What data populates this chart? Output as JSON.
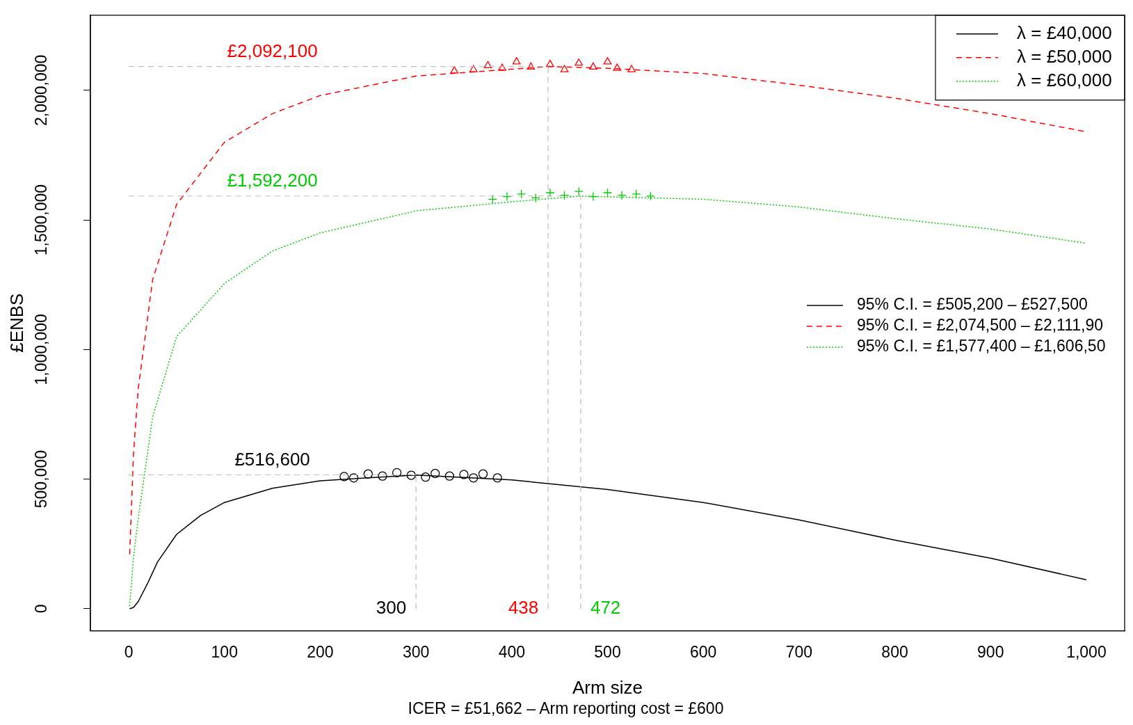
{
  "chart_data": {
    "type": "line",
    "xlabel": "Arm size",
    "ylabel": "£ENBS",
    "subtitle": "ICER = £51,662 – Arm reporting cost = £600",
    "xlim": [
      -40,
      1040
    ],
    "ylim": [
      -85000,
      2290000
    ],
    "xticks": [
      0,
      100,
      200,
      300,
      400,
      500,
      600,
      700,
      800,
      900,
      {
        "value": 1000,
        "label": "1,000"
      }
    ],
    "yticks": [
      0,
      {
        "value": 500000,
        "label": "500,000"
      },
      {
        "value": 1000000,
        "label": "1,000,000"
      },
      {
        "value": 1500000,
        "label": "1,500,000"
      },
      {
        "value": 2000000,
        "label": "2,000,000"
      }
    ],
    "grid": false,
    "legend": "top right",
    "series": [
      {
        "name": "λ = £40,000",
        "type": "line",
        "line_style": "solid",
        "color": "#000000",
        "x": [
          1,
          5,
          10,
          20,
          30,
          50,
          75,
          100,
          150,
          200,
          300,
          400,
          500,
          600,
          700,
          800,
          900,
          1000
        ],
        "values": [
          0,
          5000,
          28000,
          100000,
          180000,
          287000,
          360000,
          410000,
          465000,
          494000,
          516000,
          497000,
          460000,
          410000,
          343000,
          265000,
          195000,
          112000
        ]
      },
      {
        "name": "λ = £50,000",
        "type": "line",
        "line_style": "dashed",
        "color": "#ff0000",
        "x": [
          1,
          5,
          10,
          25,
          50,
          100,
          150,
          200,
          300,
          438,
          500,
          600,
          700,
          800,
          900,
          1000
        ],
        "values": [
          210000,
          600000,
          850000,
          1270000,
          1560000,
          1800000,
          1910000,
          1980000,
          2055000,
          2092000,
          2085000,
          2065000,
          2020000,
          1970000,
          1910000,
          1840000
        ]
      },
      {
        "name": "λ = £60,000",
        "type": "line",
        "line_style": "dotted",
        "color": "#00cc00",
        "x": [
          1,
          5,
          10,
          25,
          50,
          100,
          150,
          200,
          300,
          400,
          472,
          600,
          700,
          800,
          900,
          1000
        ],
        "values": [
          10000,
          200000,
          350000,
          740000,
          1050000,
          1255000,
          1380000,
          1450000,
          1535000,
          1570000,
          1592000,
          1580000,
          1550000,
          1505000,
          1465000,
          1410000
        ]
      },
      {
        "type": "scatter",
        "marker": "circle",
        "color": "#000000",
        "x": [
          225,
          235,
          250,
          265,
          280,
          295,
          310,
          320,
          335,
          350,
          360,
          370,
          385
        ],
        "values": [
          510000,
          505000,
          520000,
          512000,
          525000,
          515000,
          508000,
          522000,
          512000,
          518000,
          505000,
          520000,
          505000
        ]
      },
      {
        "type": "scatter",
        "marker": "triangle",
        "color": "#ff0000",
        "x": [
          340,
          360,
          375,
          390,
          405,
          420,
          440,
          455,
          470,
          485,
          500,
          510,
          525
        ],
        "values": [
          2075000,
          2080000,
          2095000,
          2085000,
          2110000,
          2090000,
          2100000,
          2080000,
          2105000,
          2090000,
          2110000,
          2085000,
          2080000
        ]
      },
      {
        "type": "scatter",
        "marker": "cross",
        "color": "#00cc00",
        "x": [
          380,
          395,
          410,
          425,
          440,
          455,
          470,
          485,
          500,
          515,
          530,
          545
        ],
        "values": [
          1580000,
          1590000,
          1600000,
          1585000,
          1605000,
          1595000,
          1610000,
          1590000,
          1605000,
          1595000,
          1600000,
          1592000
        ]
      }
    ],
    "ref_lines": [
      {
        "axis": "y",
        "value": 2092100,
        "label": "£2,092,100",
        "color": "#bebebe",
        "line_style": "dashed"
      },
      {
        "axis": "y",
        "value": 1592200,
        "label": "£1,592,200",
        "color": "#bebebe",
        "line_style": "dashed"
      },
      {
        "axis": "y",
        "value": 516600,
        "label": "£516,600",
        "color": "#bebebe",
        "line_style": "dashed"
      },
      {
        "axis": "x",
        "value": 300,
        "label": "300",
        "color": "#bebebe",
        "line_style": "dashed"
      },
      {
        "axis": "x",
        "value": 438,
        "label": "438",
        "color": "#bebebe",
        "line_style": "dashed"
      },
      {
        "axis": "x",
        "value": 472,
        "label": "472",
        "color": "#bebebe",
        "line_style": "dashed"
      }
    ],
    "annotations": [
      "95% C.I. = £505,200 – £527,500",
      "95% C.I. = £2,074,500 – £2,111,90",
      "95% C.I. = £1,577,400 – £1,606,50"
    ]
  }
}
